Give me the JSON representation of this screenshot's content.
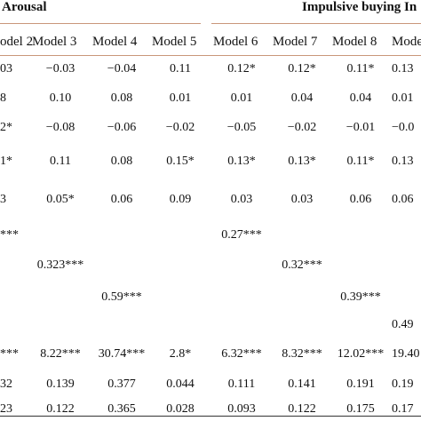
{
  "group_headers": {
    "arousal": "Arousal",
    "impulsive": "Impulsive buying In"
  },
  "column_headers": [
    "odel 2",
    "Model 3",
    "Model 4",
    "Model 5",
    "Model 6",
    "Model 7",
    "Model 8",
    "Model"
  ],
  "rows": [
    [
      "03",
      "−0.03",
      "−0.04",
      "0.11",
      "0.12*",
      "0.12*",
      "0.11*",
      "0.13"
    ],
    [
      "8",
      "0.10",
      "0.08",
      "0.01",
      "0.01",
      "0.04",
      "0.04",
      "0.01"
    ],
    [
      "2*",
      "−0.08",
      "−0.06",
      "−0.02",
      "−0.05",
      "−0.02",
      "−0.01",
      "−0.0"
    ],
    [
      "1*",
      "0.11",
      "0.08",
      "0.15*",
      "0.13*",
      "0.13*",
      "0.11*",
      "0.13"
    ],
    [
      "3",
      "0.05*",
      "0.06",
      "0.09",
      "0.03",
      "0.03",
      "0.06",
      "0.06"
    ],
    [
      "***",
      "",
      "",
      "",
      "0.27***",
      "",
      "",
      ""
    ],
    [
      "",
      "0.323***",
      "",
      "",
      "",
      "0.32***",
      "",
      ""
    ],
    [
      "",
      "",
      "0.59***",
      "",
      "",
      "",
      "0.39***",
      ""
    ],
    [
      "",
      "",
      "",
      "",
      "",
      "",
      "",
      "0.49"
    ],
    [
      "***",
      "8.22***",
      "30.74***",
      "2.8*",
      "6.32***",
      "8.32***",
      "12.02***",
      "19.40"
    ],
    [
      "32",
      "0.139",
      "0.377",
      "0.044",
      "0.111",
      "0.141",
      "0.191",
      "0.19"
    ],
    [
      "23",
      "0.122",
      "0.365",
      "0.028",
      "0.093",
      "0.122",
      "0.175",
      "0.17"
    ]
  ]
}
